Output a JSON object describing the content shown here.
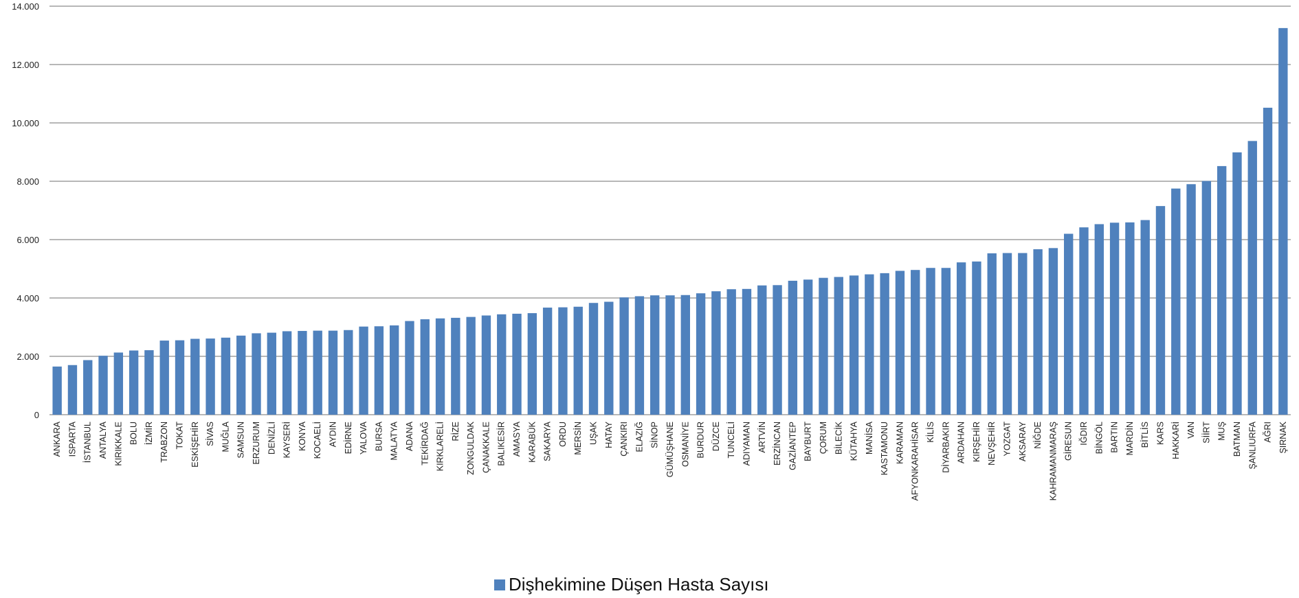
{
  "chart_data": {
    "type": "bar",
    "title": "",
    "xlabel": "",
    "ylabel": "",
    "ylim": [
      0,
      14000
    ],
    "yticks": [
      0,
      2000,
      4000,
      6000,
      8000,
      10000,
      12000,
      14000
    ],
    "ytick_labels": [
      "0",
      "2.000",
      "4.000",
      "6.000",
      "8.000",
      "10.000",
      "12.000",
      "14.000"
    ],
    "grid": true,
    "legend_position": "bottom",
    "bar_color": "#4f81bd",
    "categories": [
      "ANKARA",
      "ISPARTA",
      "İSTANBUL",
      "ANTALYA",
      "KIRIKKALE",
      "BOLU",
      "İZMİR",
      "TRABZON",
      "TOKAT",
      "ESKİŞEHİR",
      "SİVAS",
      "MUĞLA",
      "SAMSUN",
      "ERZURUM",
      "DENİZLİ",
      "KAYSERİ",
      "KONYA",
      "KOCAELİ",
      "AYDIN",
      "EDİRNE",
      "YALOVA",
      "BURSA",
      "MALATYA",
      "ADANA",
      "TEKİRDAĞ",
      "KIRKLARELİ",
      "RİZE",
      "ZONGULDAK",
      "ÇANAKKALE",
      "BALIKESİR",
      "AMASYA",
      "KARABÜK",
      "SAKARYA",
      "ORDU",
      "MERSİN",
      "UŞAK",
      "HATAY",
      "ÇANKIRI",
      "ELAZIĞ",
      "SİNOP",
      "GÜMÜŞHANE",
      "OSMANİYE",
      "BURDUR",
      "DÜZCE",
      "TUNCELİ",
      "ADIYAMAN",
      "ARTVİN",
      "ERZİNCAN",
      "GAZİANTEP",
      "BAYBURT",
      "ÇORUM",
      "BİLECİK",
      "KÜTAHYA",
      "MANİSA",
      "KASTAMONU",
      "KARAMAN",
      "AFYONKARAHİSAR",
      "KİLİS",
      "DİYARBAKIR",
      "ARDAHAN",
      "KIRŞEHİR",
      "NEVŞEHİR",
      "YOZGAT",
      "AKSARAY",
      "NİĞDE",
      "KAHRAMANMARAŞ",
      "GİRESUN",
      "IĞDIR",
      "BİNGÖL",
      "BARTIN",
      "MARDİN",
      "BİTLİS",
      "KARS",
      "HAKKARİ",
      "VAN",
      "SİİRT",
      "MUŞ",
      "BATMAN",
      "ŞANLIURFA",
      "AĞRI",
      "ŞIRNAK"
    ],
    "series": [
      {
        "name": "Dişhekimine Düşen Hasta Sayısı",
        "values": [
          1650,
          1700,
          1870,
          2020,
          2130,
          2200,
          2210,
          2540,
          2550,
          2600,
          2610,
          2640,
          2710,
          2790,
          2810,
          2860,
          2870,
          2880,
          2880,
          2900,
          3020,
          3030,
          3060,
          3210,
          3270,
          3300,
          3320,
          3350,
          3400,
          3440,
          3460,
          3480,
          3670,
          3680,
          3700,
          3830,
          3870,
          4020,
          4060,
          4090,
          4090,
          4100,
          4160,
          4230,
          4300,
          4310,
          4430,
          4440,
          4590,
          4630,
          4690,
          4720,
          4770,
          4810,
          4850,
          4930,
          4960,
          5030,
          5030,
          5220,
          5250,
          5530,
          5540,
          5540,
          5670,
          5710,
          6200,
          6420,
          6530,
          6580,
          6590,
          6670,
          7150,
          7750,
          7900,
          8010,
          8520,
          8990,
          9380,
          10520,
          13250
        ]
      }
    ]
  }
}
